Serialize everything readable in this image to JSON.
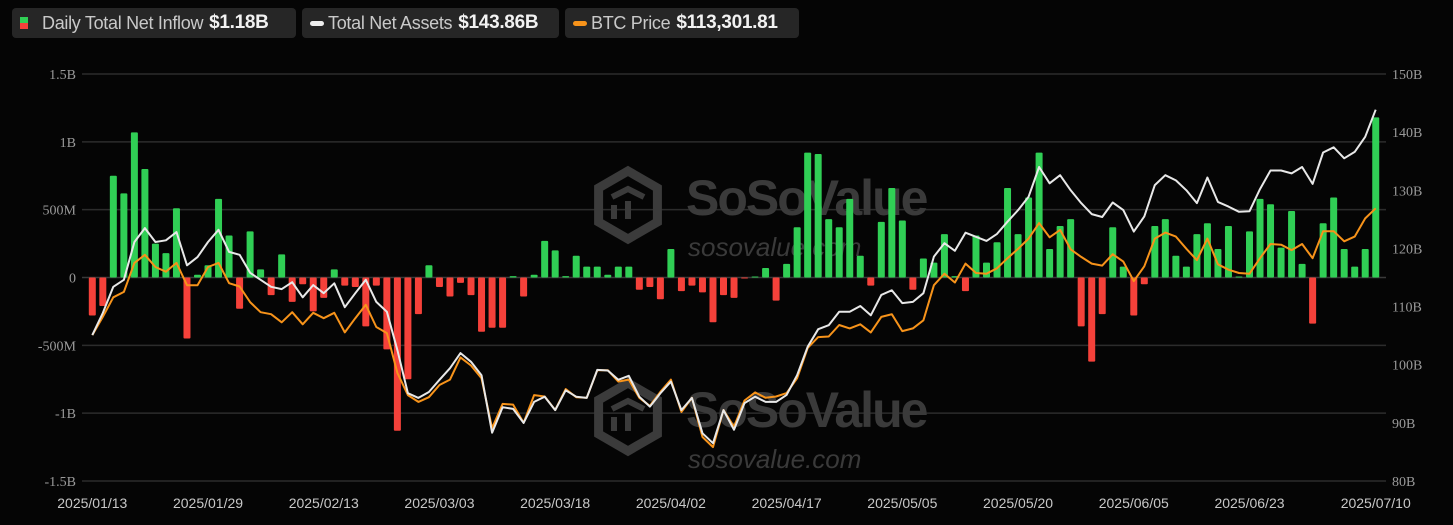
{
  "legend": {
    "inflow": {
      "label": "Daily Total Net Inflow",
      "value": "$1.18B"
    },
    "assets": {
      "label": "Total Net Assets",
      "value": "$143.86B"
    },
    "btc": {
      "label": "BTC Price",
      "value": "$113,301.81"
    }
  },
  "watermark": {
    "brand": "SoSoValue",
    "url": "sosovalue.com"
  },
  "colors": {
    "positive": "#30cf55",
    "negative": "#f5413a",
    "assets": "#e8e8e8",
    "btc": "#f7931a",
    "grid": "#2c2c2c"
  },
  "chart_data": {
    "type": "bar+line",
    "title": "",
    "left_axis": {
      "label": "Daily Total Net Inflow (USD B)",
      "range": [
        -1.5,
        1.5
      ],
      "ticks": [
        1.5,
        1,
        0.5,
        0,
        -0.5,
        -1,
        -1.5
      ],
      "tick_labels": [
        "1.5B",
        "1B",
        "500M",
        "0",
        "-500M",
        "-1B",
        "-1.5B"
      ]
    },
    "right_axis": {
      "label": "Total Net Assets (USD B)",
      "range": [
        80,
        150
      ],
      "ticks": [
        150,
        140,
        130,
        120,
        110,
        100,
        90,
        80
      ],
      "tick_labels": [
        "150B",
        "140B",
        "130B",
        "120B",
        "110B",
        "100B",
        "90B",
        "80B"
      ]
    },
    "btc_axis_range_k": [
      72.87,
      133.21
    ],
    "x_tick_labels": [
      {
        "index": 0,
        "label": "2025/01/13"
      },
      {
        "index": 11,
        "label": "2025/01/29"
      },
      {
        "index": 22,
        "label": "2025/02/13"
      },
      {
        "index": 33,
        "label": "2025/03/03"
      },
      {
        "index": 44,
        "label": "2025/03/18"
      },
      {
        "index": 55,
        "label": "2025/04/02"
      },
      {
        "index": 66,
        "label": "2025/04/17"
      },
      {
        "index": 77,
        "label": "2025/05/05"
      },
      {
        "index": 88,
        "label": "2025/05/20"
      },
      {
        "index": 99,
        "label": "2025/06/05"
      },
      {
        "index": 110,
        "label": "2025/06/23"
      },
      {
        "index": 122,
        "label": "2025/07/10"
      }
    ],
    "series": [
      {
        "name": "Daily Total Net Inflow",
        "type": "bar",
        "unit": "USD B",
        "values": [
          -0.28,
          -0.21,
          0.75,
          0.62,
          1.07,
          0.8,
          0.25,
          0.18,
          0.51,
          -0.45,
          0.02,
          0.09,
          0.58,
          0.31,
          -0.23,
          0.34,
          0.06,
          -0.13,
          0.17,
          -0.18,
          -0.05,
          -0.25,
          -0.15,
          0.06,
          -0.06,
          -0.07,
          -0.36,
          -0.06,
          -0.53,
          -1.13,
          -0.75,
          -0.27,
          0.09,
          -0.07,
          -0.14,
          -0.04,
          -0.13,
          -0.4,
          -0.37,
          -0.37,
          0.01,
          -0.14,
          0.02,
          0.27,
          0.2,
          0.01,
          0.16,
          0.08,
          0.08,
          0.02,
          0.08,
          0.08,
          -0.09,
          -0.07,
          -0.16,
          0.21,
          -0.1,
          -0.06,
          -0.11,
          -0.33,
          -0.13,
          -0.15,
          -0.005,
          0.005,
          0.07,
          -0.17,
          0.1,
          0.37,
          0.92,
          0.91,
          0.43,
          0.37,
          0.58,
          0.16,
          -0.06,
          0.41,
          0.66,
          0.42,
          -0.09,
          0.14,
          0.11,
          0.32,
          0.01,
          -0.1,
          0.31,
          0.11,
          0.26,
          0.66,
          0.32,
          0.59,
          0.92,
          0.21,
          0.38,
          0.43,
          -0.36,
          -0.62,
          -0.27,
          0.37,
          0.08,
          -0.28,
          -0.05,
          0.38,
          0.43,
          0.16,
          0.08,
          0.32,
          0.4,
          0.21,
          0.38,
          0.005,
          0.34,
          0.58,
          0.54,
          0.22,
          0.49,
          0.1,
          -0.34,
          0.4,
          0.59,
          0.21,
          0.08,
          0.21,
          1.18
        ]
      },
      {
        "name": "Total Net Assets",
        "type": "line",
        "unit": "USD B",
        "values": [
          105.1,
          108.9,
          113.4,
          114.6,
          121.1,
          123.5,
          121.1,
          121.4,
          122.8,
          117.1,
          118.5,
          121.1,
          123.2,
          119.4,
          118.9,
          115.8,
          114.6,
          113.4,
          113.0,
          114.2,
          111.6,
          113.7,
          112.3,
          114.0,
          109.9,
          112.3,
          114.6,
          110.8,
          109.1,
          102.5,
          95.1,
          94.3,
          95.3,
          97.4,
          99.4,
          102.0,
          100.5,
          98.2,
          88.3,
          92.7,
          92.4,
          90.0,
          93.6,
          94.5,
          92.2,
          95.6,
          94.5,
          94.3,
          99.1,
          99.0,
          97.4,
          98.1,
          94.5,
          92.8,
          95.1,
          97.1,
          92.2,
          94.3,
          88.2,
          86.5,
          92.2,
          88.8,
          93.4,
          94.5,
          93.6,
          93.6,
          94.8,
          98.2,
          103.1,
          106.1,
          106.8,
          109.1,
          109.1,
          110.1,
          108.5,
          112.0,
          112.8,
          110.6,
          110.8,
          112.3,
          118.6,
          120.9,
          119.6,
          122.7,
          122.0,
          121.3,
          122.5,
          124.6,
          126.6,
          128.9,
          134.0,
          131.2,
          132.6,
          130.0,
          127.8,
          125.9,
          125.4,
          127.9,
          126.6,
          122.9,
          125.5,
          130.9,
          132.6,
          131.7,
          130.0,
          127.8,
          132.2,
          128.0,
          127.2,
          126.3,
          126.4,
          130.2,
          133.4,
          133.4,
          132.9,
          134.0,
          131.1,
          136.5,
          137.4,
          135.5,
          136.6,
          139.2,
          143.86
        ]
      },
      {
        "name": "BTC Price",
        "type": "line",
        "unit": "USD thousands",
        "values": [
          94.5,
          97.2,
          100.1,
          100.9,
          105.2,
          106.4,
          104.6,
          103.9,
          105.2,
          101.9,
          101.9,
          104.6,
          105.2,
          102.2,
          101.7,
          99.4,
          97.9,
          97.6,
          96.4,
          97.9,
          96.1,
          97.8,
          97.0,
          97.8,
          94.9,
          97.0,
          99.0,
          95.7,
          94.8,
          88.9,
          85.6,
          84.6,
          85.3,
          87.1,
          87.9,
          91.2,
          90.0,
          88.1,
          80.7,
          84.3,
          84.2,
          81.5,
          85.6,
          85.4,
          83.4,
          86.5,
          85.3,
          85.2,
          89.3,
          89.3,
          87.6,
          87.9,
          85.2,
          84.0,
          86.1,
          87.9,
          83.1,
          85.2,
          79.4,
          77.9,
          83.4,
          80.9,
          84.8,
          86.0,
          85.2,
          85.4,
          85.9,
          88.1,
          92.6,
          94.2,
          94.3,
          96.0,
          95.5,
          96.1,
          94.9,
          97.2,
          97.6,
          95.1,
          95.5,
          96.7,
          101.9,
          103.6,
          102.3,
          105.1,
          103.7,
          103.6,
          104.4,
          105.9,
          107.3,
          108.8,
          111.1,
          109.0,
          110.1,
          107.2,
          106.1,
          105.1,
          104.8,
          106.5,
          105.4,
          102.5,
          104.7,
          108.8,
          109.7,
          109.1,
          107.3,
          105.6,
          108.8,
          105.0,
          104.2,
          103.7,
          103.6,
          105.9,
          108.0,
          107.9,
          107.1,
          108.0,
          105.9,
          109.9,
          109.9,
          108.4,
          109.1,
          111.8,
          113.3
        ]
      }
    ],
    "grid": true,
    "legend_position": "top-left"
  }
}
